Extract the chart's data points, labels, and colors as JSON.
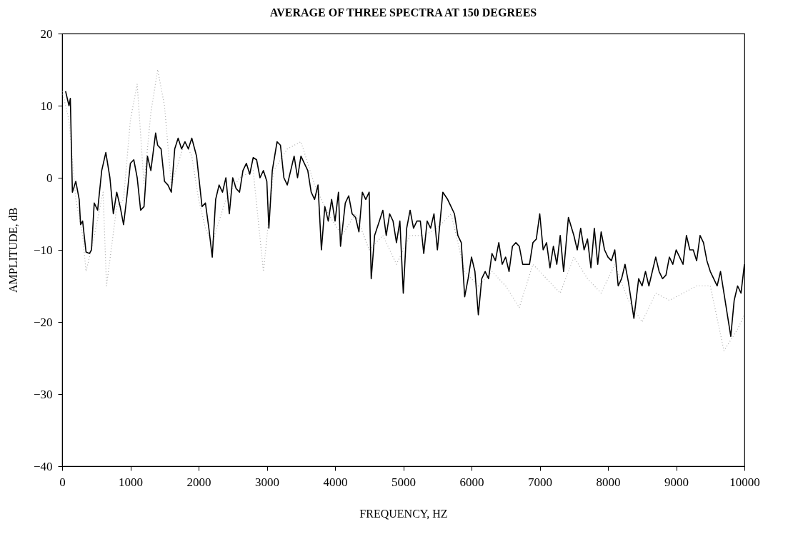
{
  "chart_data": {
    "type": "line",
    "title": "AVERAGE OF THREE SPECTRA AT 150 DEGREES",
    "xlabel": "FREQUENCY, HZ",
    "ylabel": "AMPLITUDE, dB",
    "xlim": [
      0,
      10000
    ],
    "xticks": [
      0,
      1000,
      2000,
      3000,
      4000,
      5000,
      6000,
      7000,
      8000,
      9000,
      10000
    ],
    "ylim": [
      -40,
      20
    ],
    "yticks": [
      -40,
      -30,
      -20,
      -10,
      0,
      10,
      20
    ],
    "grid": false,
    "series": [
      {
        "color": "#aaaaaa",
        "line_style": "dotted",
        "x": [
          0,
          100,
          200,
          300,
          350,
          450,
          600,
          650,
          800,
          900,
          1000,
          1100,
          1200,
          1300,
          1400,
          1500,
          1600,
          1700,
          1800,
          1900,
          2000,
          2100,
          2200,
          2400,
          2600,
          2800,
          2950,
          3100,
          3300,
          3500,
          3700,
          3900,
          4100,
          4300,
          4500,
          4700,
          4900,
          5100,
          5300,
          5500,
          5700,
          5900,
          6100,
          6300,
          6500,
          6700,
          6900,
          7100,
          7300,
          7500,
          7700,
          7900,
          8100,
          8300,
          8500,
          8700,
          8900,
          9100,
          9300,
          9500,
          9700,
          9900,
          10000
        ],
        "values": [
          12,
          8,
          -3,
          -8,
          -13,
          -9,
          -2,
          -15,
          -4,
          -3,
          8,
          13,
          -1,
          9,
          15,
          10,
          -1,
          2,
          5,
          3,
          -3,
          -7,
          -9,
          -3,
          0,
          1,
          -13,
          1,
          4,
          5,
          -1,
          -5,
          -8,
          -5,
          -10,
          -8,
          -12,
          -8,
          -8,
          -7,
          -5,
          -13,
          -15,
          -13,
          -15,
          -18,
          -12,
          -14,
          -16,
          -11,
          -14,
          -16,
          -12,
          -17,
          -20,
          -16,
          -17,
          -16,
          -15,
          -15,
          -24,
          -21,
          -19
        ]
      },
      {
        "color": "#000000",
        "line_style": "solid",
        "x": [
          50,
          100,
          120,
          150,
          200,
          250,
          270,
          300,
          350,
          400,
          430,
          470,
          520,
          580,
          640,
          700,
          750,
          800,
          850,
          900,
          950,
          1000,
          1050,
          1100,
          1150,
          1200,
          1250,
          1300,
          1370,
          1400,
          1450,
          1500,
          1550,
          1600,
          1650,
          1700,
          1750,
          1800,
          1850,
          1900,
          1970,
          2050,
          2100,
          2150,
          2200,
          2250,
          2300,
          2350,
          2400,
          2450,
          2500,
          2550,
          2600,
          2650,
          2700,
          2750,
          2800,
          2850,
          2900,
          2950,
          3000,
          3030,
          3080,
          3150,
          3200,
          3250,
          3300,
          3350,
          3400,
          3450,
          3500,
          3550,
          3600,
          3650,
          3700,
          3750,
          3800,
          3850,
          3900,
          3950,
          4000,
          4050,
          4080,
          4150,
          4200,
          4250,
          4300,
          4350,
          4400,
          4450,
          4500,
          4530,
          4580,
          4650,
          4700,
          4750,
          4800,
          4850,
          4900,
          4950,
          5000,
          5050,
          5100,
          5150,
          5200,
          5250,
          5300,
          5350,
          5400,
          5450,
          5500,
          5580,
          5650,
          5700,
          5750,
          5800,
          5850,
          5900,
          5950,
          6000,
          6050,
          6100,
          6150,
          6200,
          6250,
          6300,
          6350,
          6400,
          6450,
          6500,
          6550,
          6600,
          6650,
          6700,
          6750,
          6800,
          6850,
          6900,
          6950,
          7000,
          7050,
          7100,
          7150,
          7200,
          7250,
          7300,
          7350,
          7420,
          7500,
          7550,
          7600,
          7650,
          7700,
          7750,
          7800,
          7850,
          7900,
          7950,
          8000,
          8050,
          8100,
          8150,
          8200,
          8250,
          8300,
          8380,
          8450,
          8500,
          8550,
          8600,
          8650,
          8700,
          8750,
          8800,
          8850,
          8900,
          8950,
          9000,
          9050,
          9100,
          9150,
          9200,
          9250,
          9300,
          9350,
          9400,
          9450,
          9500,
          9550,
          9600,
          9650,
          9700,
          9750,
          9800,
          9850,
          9900,
          9950,
          10000
        ],
        "values": [
          12,
          10,
          11,
          -2,
          -0.5,
          -3,
          -6.5,
          -6,
          -10.3,
          -10.5,
          -10,
          -3.5,
          -4.5,
          1,
          3.5,
          0,
          -5,
          -2,
          -4,
          -6.5,
          -2.5,
          2,
          2.5,
          0,
          -4.5,
          -4,
          3,
          1,
          6.2,
          4.5,
          4,
          -0.5,
          -1,
          -2,
          4,
          5.5,
          4,
          5,
          4,
          5.5,
          3,
          -4,
          -3.5,
          -7,
          -11,
          -3,
          -1,
          -2,
          0,
          -5,
          0,
          -1.5,
          -2,
          1,
          2,
          0.5,
          2.8,
          2.5,
          0,
          1,
          -0.5,
          -7,
          1,
          5,
          4.5,
          0,
          -1,
          1,
          3,
          0,
          3,
          2,
          1,
          -2,
          -3,
          -1,
          -10,
          -4,
          -6,
          -3,
          -6,
          -2,
          -9.5,
          -3.5,
          -2.5,
          -5,
          -5.5,
          -7.5,
          -2,
          -3,
          -2,
          -14,
          -8,
          -6,
          -4.5,
          -8,
          -5,
          -6,
          -9,
          -6,
          -16,
          -7,
          -4.5,
          -7,
          -6,
          -6,
          -10.5,
          -6,
          -7,
          -5,
          -10,
          -2,
          -3,
          -4,
          -5,
          -8,
          -9,
          -16.5,
          -14,
          -11,
          -13,
          -19,
          -14,
          -13,
          -14,
          -10.5,
          -11.5,
          -9,
          -12,
          -11,
          -13,
          -9.5,
          -9,
          -9.5,
          -12,
          -12,
          -12,
          -9,
          -8.5,
          -5,
          -10,
          -9,
          -12.5,
          -9.5,
          -12,
          -8,
          -13,
          -5.5,
          -8,
          -10,
          -7,
          -10,
          -8.5,
          -12.5,
          -7,
          -12,
          -7.5,
          -10,
          -11,
          -11.5,
          -10,
          -15,
          -14,
          -12,
          -14.5,
          -19.5,
          -14,
          -15,
          -13,
          -15,
          -13,
          -11,
          -13,
          -14,
          -13.5,
          -11,
          -12,
          -10,
          -11,
          -12,
          -8,
          -10,
          -10,
          -11.5,
          -8,
          -9,
          -11.5,
          -13,
          -14,
          -15,
          -13,
          -16,
          -19,
          -22,
          -17,
          -15,
          -16,
          -12
        ]
      }
    ]
  }
}
